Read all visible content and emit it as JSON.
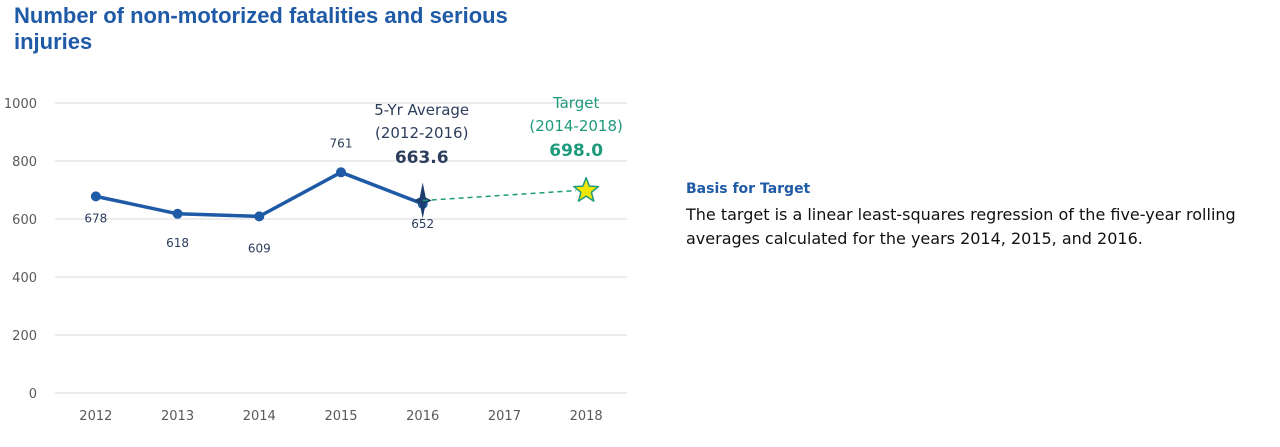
{
  "title": "Number of non-motorized fatalities and serious injuries",
  "basis": {
    "heading": "Basis for Target",
    "text": "The target is a linear least-squares regression of the five-year rolling averages calculated for the years 2014, 2015, and 2016."
  },
  "colors": {
    "title": "#1f5aa6",
    "series": "#1f5aa6",
    "average_label": "#2c3e5c",
    "target": "#1e9a7c",
    "target_star_fill": "#f2e600",
    "target_star_stroke": "#1e9a7c",
    "grid": "#d9d9d9"
  },
  "chart_data": {
    "type": "line",
    "categories": [
      "2012",
      "2013",
      "2014",
      "2015",
      "2016",
      "2017",
      "2018"
    ],
    "ylim": [
      0,
      1000
    ],
    "yticks": [
      0,
      200,
      400,
      600,
      800,
      1000
    ],
    "grid": true,
    "series": [
      {
        "values": [
          678,
          618,
          609,
          761,
          652,
          null,
          null
        ]
      }
    ],
    "data_labels": [
      "678",
      "618",
      "609",
      "761",
      "652"
    ],
    "average": {
      "label_line1": "5-Yr Average",
      "label_line2": "(2012-2016)",
      "value_label": "663.6",
      "x": "2016",
      "value": 663.6
    },
    "target": {
      "label_line1": "Target",
      "label_line2": "(2014-2018)",
      "value_label": "698.0",
      "x": "2018",
      "value": 698.0
    }
  }
}
